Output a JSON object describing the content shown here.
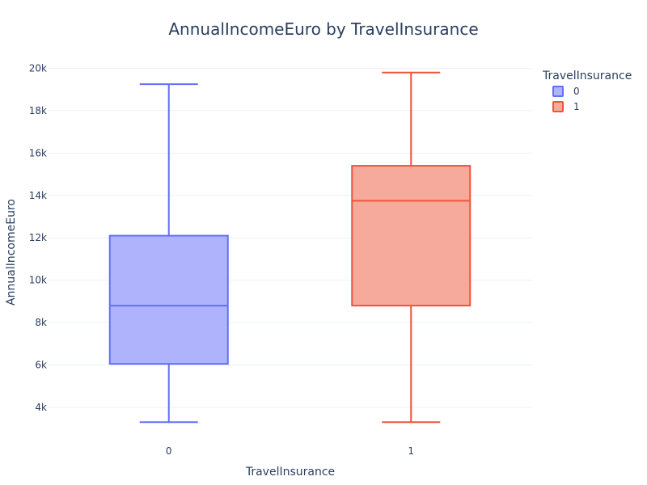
{
  "chart_data": {
    "type": "box",
    "title": "AnnualIncomeEuro by TravelInsurance",
    "xlabel": "TravelInsurance",
    "ylabel": "AnnualIncomeEuro",
    "ylim": [
      2700,
      20400
    ],
    "yticks": [
      4000,
      6000,
      8000,
      10000,
      12000,
      14000,
      16000,
      18000,
      20000
    ],
    "ytick_labels": [
      "4k",
      "6k",
      "8k",
      "10k",
      "12k",
      "14k",
      "16k",
      "18k",
      "20k"
    ],
    "categories": [
      "0",
      "1"
    ],
    "grid": true,
    "legend": {
      "title": "TravelInsurance",
      "placement": "top-right",
      "entries": [
        "0",
        "1"
      ]
    },
    "series": [
      {
        "name": "0",
        "category": "0",
        "color": "#636efa",
        "fill": "#aeb3fb",
        "min": 3300,
        "q1": 6050,
        "median": 8800,
        "q3": 12100,
        "max": 19250
      },
      {
        "name": "1",
        "category": "1",
        "color": "#ef553b",
        "fill": "#f6aa9c",
        "min": 3300,
        "q1": 8800,
        "median": 13750,
        "q3": 15400,
        "max": 19800
      }
    ]
  }
}
